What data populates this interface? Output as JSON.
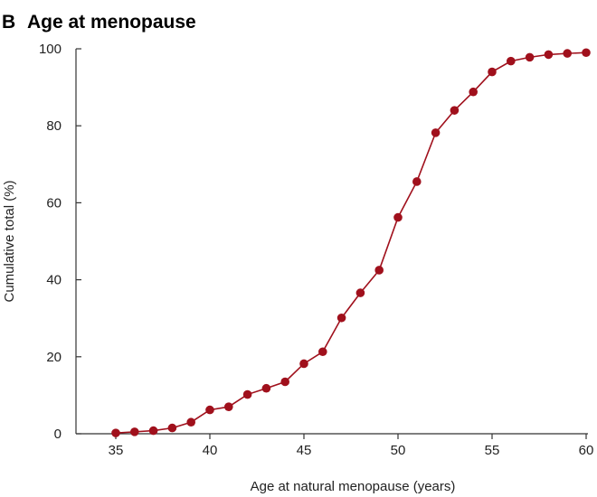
{
  "chart_data": {
    "type": "line",
    "panel_label": "B",
    "title": "Age at menopause",
    "xlabel": "Age at natural menopause (years)",
    "ylabel": "Cumulative total (%)",
    "xlim": [
      35,
      60
    ],
    "ylim": [
      0,
      100
    ],
    "xticks": [
      35,
      40,
      45,
      50,
      55,
      60
    ],
    "yticks": [
      0,
      20,
      40,
      60,
      80,
      100
    ],
    "grid": false,
    "series": [
      {
        "color": "#a0101c",
        "x": [
          35,
          36,
          37,
          38,
          39,
          40,
          41,
          42,
          43,
          44,
          45,
          46,
          47,
          48,
          49,
          50,
          51,
          52,
          53,
          54,
          55,
          56,
          57,
          58,
          59,
          60
        ],
        "y": [
          0.2,
          0.5,
          0.8,
          1.5,
          3,
          6.2,
          7,
          10.2,
          11.8,
          13.5,
          18.2,
          21.3,
          30.1,
          36.6,
          42.5,
          56.2,
          65.5,
          78.2,
          84,
          88.8,
          94,
          96.8,
          97.8,
          98.5,
          98.8,
          99
        ]
      }
    ]
  }
}
